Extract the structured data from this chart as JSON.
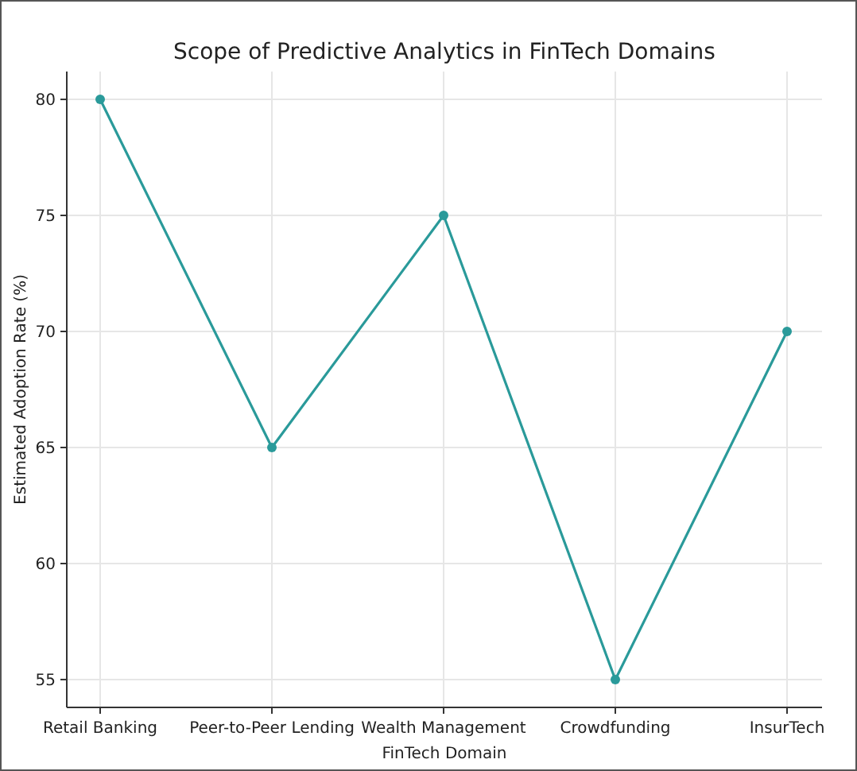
{
  "chart_data": {
    "type": "line",
    "title": "Scope of Predictive Analytics in FinTech Domains",
    "xlabel": "FinTech Domain",
    "ylabel": "Estimated Adoption Rate (%)",
    "categories": [
      "Retail Banking",
      "Peer-to-Peer Lending",
      "Wealth Management",
      "Crowdfunding",
      "InsurTech"
    ],
    "series": [
      {
        "color": "#2a9a9a",
        "values": [
          80,
          65,
          75,
          55,
          70
        ]
      }
    ],
    "ylim": [
      53.8,
      81.2
    ],
    "yticks": [
      55,
      60,
      65,
      70,
      75,
      80
    ],
    "grid": true,
    "marker": "circle",
    "line_style": "solid"
  }
}
